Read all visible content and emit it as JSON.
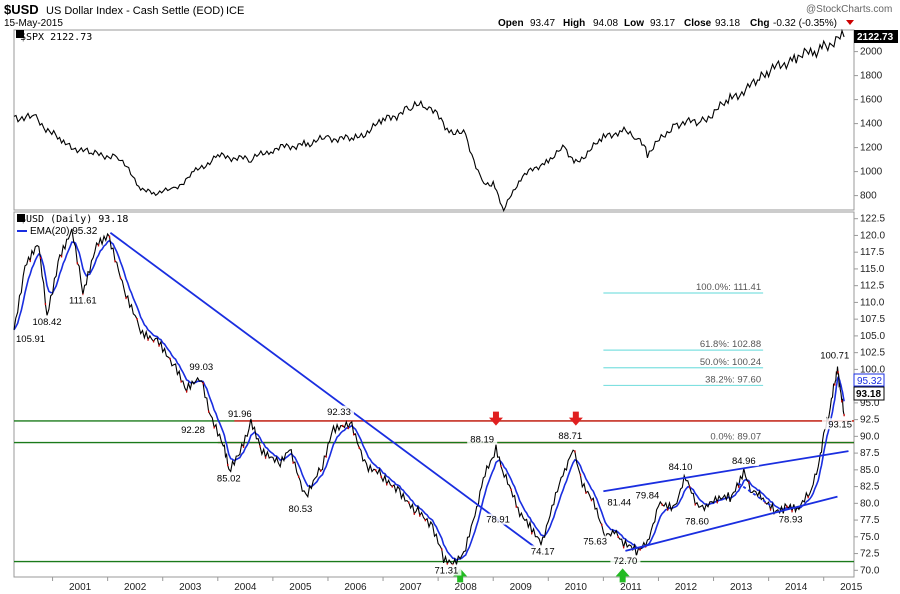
{
  "header": {
    "symbol": "$USD",
    "name": "US Dollar Index - Cash Settle (EOD)",
    "exchange": "ICE",
    "date": "15-May-2015",
    "watermark": "@StockCharts.com",
    "ohlc": {
      "open_label": "Open",
      "open": "93.47",
      "high_label": "High",
      "high": "94.08",
      "low_label": "Low",
      "low": "93.17",
      "close_label": "Close",
      "close": "93.18",
      "chg_label": "Chg",
      "chg": "-0.32 (-0.35%)"
    }
  },
  "chart_data": [
    {
      "type": "line",
      "legend": "$SPX 2122.73",
      "last_value_label": "2122.73",
      "y_ticks": [
        800,
        1000,
        1200,
        1400,
        1600,
        1800,
        2000
      ],
      "ylim": [
        680,
        2180
      ],
      "x": [
        2000.3,
        2000.7,
        2001.2,
        2001.7,
        2002.2,
        2002.6,
        2002.8,
        2003.2,
        2003.6,
        2004.0,
        2004.6,
        2005.0,
        2005.6,
        2006.0,
        2006.5,
        2007.0,
        2007.5,
        2007.8,
        2008.2,
        2008.5,
        2008.8,
        2009.0,
        2009.19,
        2009.5,
        2010.0,
        2010.3,
        2010.5,
        2011.0,
        2011.3,
        2011.6,
        2011.8,
        2012.3,
        2012.8,
        2013.3,
        2013.8,
        2014.0,
        2014.5,
        2014.8,
        2015.0,
        2015.37
      ],
      "values": [
        1460,
        1440,
        1230,
        1150,
        1120,
        870,
        820,
        850,
        1000,
        1130,
        1100,
        1190,
        1230,
        1280,
        1270,
        1420,
        1530,
        1560,
        1350,
        1300,
        900,
        900,
        680,
        950,
        1100,
        1200,
        1070,
        1280,
        1340,
        1300,
        1150,
        1400,
        1420,
        1600,
        1750,
        1830,
        1960,
        1990,
        2050,
        2122.73
      ]
    },
    {
      "type": "line",
      "legend_primary": "$USD (Daily) 93.18",
      "legend_secondary": "EMA(20) 95.32",
      "ema_label": "95.32",
      "close_label": "93.18",
      "y_ticks": [
        "70.0",
        "72.5",
        "75.0",
        "77.5",
        "80.0",
        "82.5",
        "85.0",
        "87.5",
        "90.0",
        "92.5",
        "95.0",
        "97.5",
        "100.0",
        "102.5",
        "105.0",
        "107.5",
        "110.0",
        "112.5",
        "115.0",
        "117.5",
        "120.0",
        "122.5"
      ],
      "ylim": [
        69,
        123.5
      ],
      "x_ticks": [
        "2001",
        "2002",
        "2003",
        "2004",
        "2005",
        "2006",
        "2007",
        "2008",
        "2009",
        "2010",
        "2011",
        "2012",
        "2013",
        "2014",
        "2015"
      ],
      "xlim": [
        2000.3,
        2015.55
      ],
      "x": [
        2000.3,
        2000.5,
        2000.75,
        2000.9,
        2001.1,
        2001.35,
        2001.55,
        2001.8,
        2002.0,
        2002.3,
        2002.6,
        2002.9,
        2003.2,
        2003.4,
        2003.7,
        2003.9,
        2004.1,
        2004.2,
        2004.4,
        2004.6,
        2004.8,
        2005.1,
        2005.3,
        2005.6,
        2005.9,
        2006.1,
        2006.4,
        2006.7,
        2007.0,
        2007.3,
        2007.6,
        2007.9,
        2008.1,
        2008.3,
        2008.5,
        2008.7,
        2008.85,
        2009.05,
        2009.2,
        2009.45,
        2009.7,
        2009.9,
        2010.1,
        2010.3,
        2010.45,
        2010.65,
        2010.85,
        2011.0,
        2011.2,
        2011.4,
        2011.6,
        2011.8,
        2012.0,
        2012.3,
        2012.5,
        2012.7,
        2012.9,
        2013.1,
        2013.3,
        2013.55,
        2013.7,
        2013.9,
        2014.1,
        2014.3,
        2014.55,
        2014.75,
        2014.9,
        2015.0,
        2015.1,
        2015.2,
        2015.25,
        2015.3,
        2015.37
      ],
      "values": [
        105.91,
        115.0,
        118.5,
        108.42,
        116.0,
        120.5,
        111.61,
        119.0,
        120.0,
        111.5,
        106.0,
        104.5,
        100.5,
        97.0,
        99.03,
        92.28,
        88.5,
        85.02,
        88.0,
        91.96,
        87.5,
        86.0,
        88.5,
        80.53,
        85.5,
        91.5,
        92.33,
        85.0,
        84.0,
        82.0,
        79.0,
        76.0,
        72.0,
        71.31,
        73.0,
        78.91,
        85.0,
        88.19,
        84.0,
        79.0,
        76.5,
        74.17,
        80.0,
        85.0,
        88.71,
        82.0,
        79.5,
        75.63,
        76.0,
        73.5,
        72.7,
        74.5,
        79.84,
        79.0,
        84.1,
        80.0,
        79.5,
        80.5,
        81.0,
        84.96,
        81.5,
        80.5,
        79.2,
        79.5,
        78.93,
        81.5,
        86.0,
        90.0,
        93.15,
        98.0,
        100.71,
        96.5,
        93.18
      ]
    }
  ],
  "annotations": {
    "price_labels": [
      {
        "text": "105.91",
        "x": 2000.35,
        "y": 105.91,
        "pos": "below"
      },
      {
        "text": "108.42",
        "x": 2000.9,
        "y": 108.42,
        "pos": "below"
      },
      {
        "text": "111.61",
        "x": 2001.55,
        "y": 111.61,
        "pos": "below"
      },
      {
        "text": "99.03",
        "x": 2003.7,
        "y": 99.03,
        "pos": "above"
      },
      {
        "text": "92.28",
        "x": 2003.55,
        "y": 92.28,
        "pos": "below"
      },
      {
        "text": "91.96",
        "x": 2004.4,
        "y": 91.96,
        "pos": "above"
      },
      {
        "text": "85.02",
        "x": 2004.2,
        "y": 85.02,
        "pos": "below"
      },
      {
        "text": "80.53",
        "x": 2005.5,
        "y": 80.53,
        "pos": "below"
      },
      {
        "text": "92.33",
        "x": 2006.2,
        "y": 92.33,
        "pos": "above"
      },
      {
        "text": "88.19",
        "x": 2008.8,
        "y": 88.19,
        "pos": "above"
      },
      {
        "text": "78.91",
        "x": 2008.8,
        "y": 78.91,
        "pos": "right"
      },
      {
        "text": "71.31",
        "x": 2008.15,
        "y": 71.31,
        "pos": "below"
      },
      {
        "text": "74.17",
        "x": 2009.9,
        "y": 74.17,
        "pos": "below"
      },
      {
        "text": "88.71",
        "x": 2010.4,
        "y": 88.71,
        "pos": "above"
      },
      {
        "text": "81.44",
        "x": 2011.0,
        "y": 81.44,
        "pos": "right"
      },
      {
        "text": "75.63",
        "x": 2010.85,
        "y": 75.63,
        "pos": "below"
      },
      {
        "text": "72.70",
        "x": 2011.4,
        "y": 72.7,
        "pos": "below"
      },
      {
        "text": "79.84",
        "x": 2011.8,
        "y": 79.84,
        "pos": "above"
      },
      {
        "text": "84.10",
        "x": 2012.4,
        "y": 84.1,
        "pos": "above"
      },
      {
        "text": "78.60",
        "x": 2012.7,
        "y": 78.6,
        "pos": "below"
      },
      {
        "text": "84.96",
        "x": 2013.55,
        "y": 84.96,
        "pos": "above"
      },
      {
        "text": "78.93",
        "x": 2014.4,
        "y": 78.93,
        "pos": "below"
      },
      {
        "text": "100.71",
        "x": 2015.2,
        "y": 100.71,
        "pos": "above"
      },
      {
        "text": "93.15",
        "x": 2015.35,
        "y": 93.15,
        "pos": "right"
      }
    ],
    "fib_levels": [
      {
        "label": "100.0%: 111.41",
        "value": 111.41
      },
      {
        "label": "61.8%: 102.88",
        "value": 102.88
      },
      {
        "label": "50.0%: 100.24",
        "value": 100.24
      },
      {
        "label": "38.2%: 97.60",
        "value": 97.6
      },
      {
        "label": "0.0%: 89.07",
        "value": 89.07
      }
    ],
    "fib_x_range": [
      2011.0,
      2013.9
    ],
    "horizontal_lines": [
      {
        "value": 89.07,
        "color": "#e02020",
        "x_start": 2004.0,
        "x_end": 2015.55
      },
      {
        "value": 89.07,
        "color": "#1a7a1a",
        "x_start": 2000.3,
        "x_end": 2015.55
      },
      {
        "value": 92.3,
        "color": "#1a7a1a",
        "x_start": 2000.3,
        "x_end": 2015.55
      },
      {
        "value": 92.3,
        "color": "#e02020",
        "x_start": 2004.3,
        "x_end": 2015.55
      },
      {
        "value": 71.3,
        "color": "#1a7a1a",
        "x_start": 2000.3,
        "x_end": 2015.55
      }
    ],
    "trendlines": [
      {
        "x1": 2002.05,
        "y1": 120.4,
        "x2": 2009.75,
        "y2": 73.5,
        "color": "#1a2ee0",
        "dashed": false
      },
      {
        "x1": 2011.0,
        "y1": 81.8,
        "x2": 2015.45,
        "y2": 87.8,
        "color": "#1a2ee0",
        "dashed": false
      },
      {
        "x1": 2011.4,
        "y1": 72.9,
        "x2": 2015.25,
        "y2": 81.0,
        "color": "#1a2ee0",
        "dashed": false
      },
      {
        "x1": 2013.45,
        "y1": 83.0,
        "x2": 2014.05,
        "y2": 79.6,
        "color": "#1a2ee0",
        "dashed": true
      }
    ],
    "arrows": [
      {
        "x": 2009.05,
        "y": 92.5,
        "dir": "down",
        "color": "#e02020"
      },
      {
        "x": 2010.5,
        "y": 92.5,
        "dir": "down",
        "color": "#e02020"
      },
      {
        "x": 2008.4,
        "y": 69.4,
        "dir": "up",
        "color": "#22bb22"
      },
      {
        "x": 2011.35,
        "y": 69.4,
        "dir": "up",
        "color": "#22bb22"
      }
    ]
  },
  "colors": {
    "price": "#000000",
    "ema": "#1a2ee0",
    "fib": "#7fe0e0",
    "down_bar": "#cc0000"
  }
}
